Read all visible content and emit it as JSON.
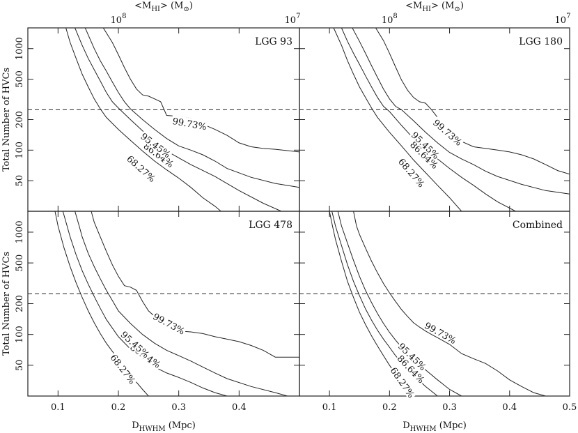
{
  "chart_data": {
    "type": "line",
    "x_axis": {
      "label": "D",
      "label_sub": "HWHM",
      "label_unit": "(Mpc)",
      "xlim": [
        0.05,
        0.5
      ],
      "ticks": [
        0.1,
        0.2,
        0.3,
        0.4,
        0.5
      ],
      "tick_labels": [
        "0.1",
        "0.2",
        "0.3",
        "0.4",
        "0.5"
      ]
    },
    "top_axis": {
      "label": "<M",
      "label_sub": "HI",
      "label_tail": "> (M",
      "label_sun": "⊙",
      "label_close": ")",
      "tick_positions_mpc": [
        0.2,
        0.5
      ],
      "tick_labels": [
        "10",
        "10"
      ],
      "tick_exponents": [
        "8",
        "7"
      ]
    },
    "y_axis": {
      "label": "Total Number of HVCs",
      "scale": "log",
      "ylim": [
        25,
        1600
      ],
      "ticks": [
        50,
        100,
        200,
        500,
        1000
      ],
      "tick_labels": [
        "50",
        "100",
        "200",
        "500",
        "1000"
      ]
    },
    "reference_line": {
      "y": 250,
      "style": "dashed"
    },
    "panels": [
      {
        "title": "LGG 93",
        "series": [
          {
            "name": "68.27%",
            "label": "68.27%",
            "label_at": [
              0.238,
              66
            ],
            "x": [
              0.113,
              0.12,
              0.13,
              0.14,
              0.15,
              0.16,
              0.17,
              0.18,
              0.2,
              0.22,
              0.24,
              0.26,
              0.28,
              0.3,
              0.32,
              0.34,
              0.36,
              0.37
            ],
            "y": [
              1600,
              1150,
              800,
              560,
              420,
              320,
              255,
              210,
              160,
              125,
              98,
              78,
              64,
              53,
              43,
              34,
              28,
              25
            ]
          },
          {
            "name": "86.64%",
            "label": "86.64%",
            "label_at": [
              0.267,
              90
            ],
            "x": [
              0.128,
              0.14,
              0.15,
              0.16,
              0.17,
              0.18,
              0.19,
              0.2,
              0.22,
              0.24,
              0.26,
              0.28,
              0.3,
              0.32,
              0.36,
              0.4,
              0.44,
              0.47
            ],
            "y": [
              1600,
              1080,
              800,
              620,
              480,
              370,
              300,
              260,
              200,
              155,
              120,
              98,
              84,
              72,
              55,
              40,
              30,
              25
            ]
          },
          {
            "name": "95.45%",
            "label": "95.45%",
            "label_at": [
              0.262,
              112
            ],
            "x": [
              0.145,
              0.16,
              0.17,
              0.18,
              0.19,
              0.2,
              0.21,
              0.22,
              0.24,
              0.26,
              0.28,
              0.3,
              0.32,
              0.34,
              0.36,
              0.38,
              0.42,
              0.46,
              0.5
            ],
            "y": [
              1600,
              1000,
              760,
              600,
              470,
              370,
              300,
              255,
              200,
              160,
              130,
              110,
              100,
              90,
              78,
              66,
              54,
              47,
              43
            ]
          },
          {
            "name": "99.73%",
            "label": "99.73%",
            "label_at": [
              0.318,
              183
            ],
            "x": [
              0.175,
              0.19,
              0.2,
              0.21,
              0.22,
              0.23,
              0.24,
              0.25,
              0.26,
              0.27,
              0.28,
              0.3,
              0.31,
              0.32,
              0.34,
              0.36,
              0.38,
              0.4,
              0.42,
              0.44,
              0.46,
              0.5
            ],
            "y": [
              1600,
              1150,
              870,
              650,
              500,
              400,
              350,
              340,
              320,
              300,
              220,
              215,
              210,
              205,
              180,
              160,
              140,
              118,
              108,
              104,
              102,
              96
            ]
          }
        ]
      },
      {
        "title": "LGG 180",
        "series": [
          {
            "name": "68.27%",
            "label": "68.27%",
            "label_at": [
              0.237,
              60
            ],
            "x": [
              0.107,
              0.12,
              0.13,
              0.14,
              0.15,
              0.16,
              0.17,
              0.18,
              0.2,
              0.22,
              0.24,
              0.26,
              0.28,
              0.3,
              0.32
            ],
            "y": [
              1600,
              1080,
              760,
              560,
              420,
              330,
              260,
              210,
              150,
              110,
              80,
              60,
              45,
              34,
              25
            ]
          },
          {
            "name": "86.64%",
            "label": "86.64%",
            "label_at": [
              0.258,
              90
            ],
            "x": [
              0.12,
              0.13,
              0.14,
              0.15,
              0.16,
              0.17,
              0.18,
              0.19,
              0.2,
              0.22,
              0.24,
              0.26,
              0.28,
              0.3,
              0.32,
              0.34,
              0.36,
              0.38,
              0.41
            ],
            "y": [
              1600,
              1180,
              900,
              700,
              540,
              420,
              330,
              270,
              240,
              175,
              130,
              100,
              82,
              66,
              54,
              45,
              37,
              31,
              25
            ]
          },
          {
            "name": "95.45%",
            "label": "95.45%",
            "label_at": [
              0.26,
              112
            ],
            "x": [
              0.138,
              0.15,
              0.16,
              0.17,
              0.18,
              0.19,
              0.2,
              0.21,
              0.22,
              0.24,
              0.26,
              0.28,
              0.3,
              0.32,
              0.34,
              0.36,
              0.38,
              0.42,
              0.46,
              0.5
            ],
            "y": [
              1600,
              1180,
              900,
              680,
              520,
              400,
              320,
              270,
              250,
              195,
              150,
              118,
              95,
              82,
              72,
              62,
              55,
              46,
              40,
              37
            ]
          },
          {
            "name": "99.73%",
            "label": "99.73%",
            "label_at": [
              0.297,
              150
            ],
            "x": [
              0.177,
              0.19,
              0.2,
              0.21,
              0.22,
              0.23,
              0.24,
              0.25,
              0.26,
              0.27,
              0.28,
              0.29,
              0.3,
              0.32,
              0.34,
              0.36,
              0.38,
              0.4,
              0.42,
              0.44,
              0.46,
              0.48,
              0.5
            ],
            "y": [
              1600,
              1200,
              900,
              660,
              490,
              390,
              330,
              300,
              290,
              250,
              210,
              180,
              160,
              122,
              108,
              104,
              100,
              96,
              90,
              82,
              72,
              63,
              58
            ]
          }
        ]
      },
      {
        "title": "LGG 478",
        "series": [
          {
            "name": "68.27%",
            "label": "68.27%",
            "label_at": [
              0.208,
              46
            ],
            "x": [
              0.095,
              0.1,
              0.11,
              0.12,
              0.13,
              0.14,
              0.15,
              0.16,
              0.17,
              0.18,
              0.2,
              0.22,
              0.24,
              0.25
            ],
            "y": [
              1600,
              1150,
              700,
              460,
              320,
              230,
              170,
              130,
              102,
              82,
              57,
              40,
              29,
              25
            ]
          },
          {
            "name": "86.64%",
            "label": "86.64%",
            "label_at": [
              0.245,
              62
            ],
            "x": [
              0.108,
              0.115,
              0.12,
              0.13,
              0.14,
              0.15,
              0.16,
              0.17,
              0.18,
              0.2,
              0.22,
              0.24,
              0.26,
              0.28,
              0.3,
              0.32,
              0.34,
              0.36,
              0.38
            ],
            "y": [
              1600,
              1150,
              900,
              600,
              420,
              310,
              235,
              180,
              140,
              95,
              72,
              58,
              48,
              42,
              38,
              34,
              30,
              27,
              25
            ]
          },
          {
            "name": "95.45%",
            "label": "95.45%",
            "label_at": [
              0.228,
              80
            ],
            "x": [
              0.128,
              0.135,
              0.14,
              0.15,
              0.16,
              0.17,
              0.18,
              0.19,
              0.2,
              0.22,
              0.24,
              0.26,
              0.28,
              0.3,
              0.32,
              0.34,
              0.36,
              0.38,
              0.42,
              0.46,
              0.48
            ],
            "y": [
              1600,
              1150,
              900,
              620,
              460,
              350,
              270,
              215,
              170,
              128,
              100,
              82,
              70,
              62,
              55,
              48,
              42,
              37,
              31,
              27,
              25
            ]
          },
          {
            "name": "99.73%",
            "label": "99.73%",
            "label_at": [
              0.284,
              128
            ],
            "x": [
              0.155,
              0.16,
              0.17,
              0.18,
              0.19,
              0.2,
              0.21,
              0.22,
              0.23,
              0.24,
              0.25,
              0.26,
              0.27,
              0.28,
              0.3,
              0.32,
              0.34,
              0.36,
              0.38,
              0.4,
              0.42,
              0.44,
              0.46,
              0.5
            ],
            "y": [
              1600,
              1250,
              900,
              650,
              480,
              370,
              300,
              290,
              270,
              210,
              170,
              150,
              135,
              125,
              108,
              106,
              102,
              95,
              90,
              85,
              78,
              70,
              60,
              60
            ]
          }
        ]
      },
      {
        "title": "Combined",
        "series": [
          {
            "name": "68.27%",
            "label": "68.27%",
            "label_at": [
              0.222,
              34
            ],
            "x": [
              0.1,
              0.105,
              0.11,
              0.12,
              0.13,
              0.14,
              0.15,
              0.16,
              0.17,
              0.18,
              0.19,
              0.2,
              0.21,
              0.22,
              0.23,
              0.24
            ],
            "y": [
              1600,
              1150,
              850,
              520,
              330,
              230,
              165,
              125,
              97,
              77,
              62,
              50,
              41,
              34,
              28,
              25
            ]
          },
          {
            "name": "86.64%",
            "label": "86.64%",
            "label_at": [
              0.236,
              46
            ],
            "x": [
              0.104,
              0.11,
              0.12,
              0.13,
              0.14,
              0.15,
              0.16,
              0.17,
              0.18,
              0.19,
              0.2,
              0.21,
              0.22,
              0.24,
              0.26,
              0.28
            ],
            "y": [
              1600,
              1150,
              740,
              480,
              330,
              240,
              178,
              138,
              110,
              90,
              75,
              62,
              53,
              40,
              31,
              25
            ]
          },
          {
            "name": "95.45%",
            "label": "95.45%",
            "label_at": [
              0.238,
              61
            ],
            "x": [
              0.114,
              0.12,
              0.13,
              0.14,
              0.15,
              0.16,
              0.17,
              0.18,
              0.19,
              0.2,
              0.21,
              0.22,
              0.23,
              0.24,
              0.26,
              0.28,
              0.3,
              0.32
            ],
            "y": [
              1600,
              1150,
              780,
              530,
              370,
              270,
              205,
              160,
              128,
              105,
              88,
              75,
              65,
              57,
              45,
              36,
              29,
              25
            ]
          },
          {
            "name": "99.73%",
            "label": "99.73%",
            "label_at": [
              0.285,
              104
            ],
            "x": [
              0.14,
              0.145,
              0.15,
              0.16,
              0.17,
              0.18,
              0.19,
              0.2,
              0.21,
              0.22,
              0.23,
              0.24,
              0.25,
              0.26,
              0.27,
              0.28,
              0.3,
              0.32,
              0.34,
              0.36,
              0.38,
              0.4,
              0.42,
              0.44,
              0.46
            ],
            "y": [
              1600,
              1150,
              950,
              700,
              520,
              400,
              315,
              255,
              210,
              175,
              150,
              130,
              118,
              108,
              100,
              93,
              80,
              65,
              58,
              52,
              44,
              36,
              31,
              27,
              25
            ]
          }
        ]
      }
    ]
  }
}
